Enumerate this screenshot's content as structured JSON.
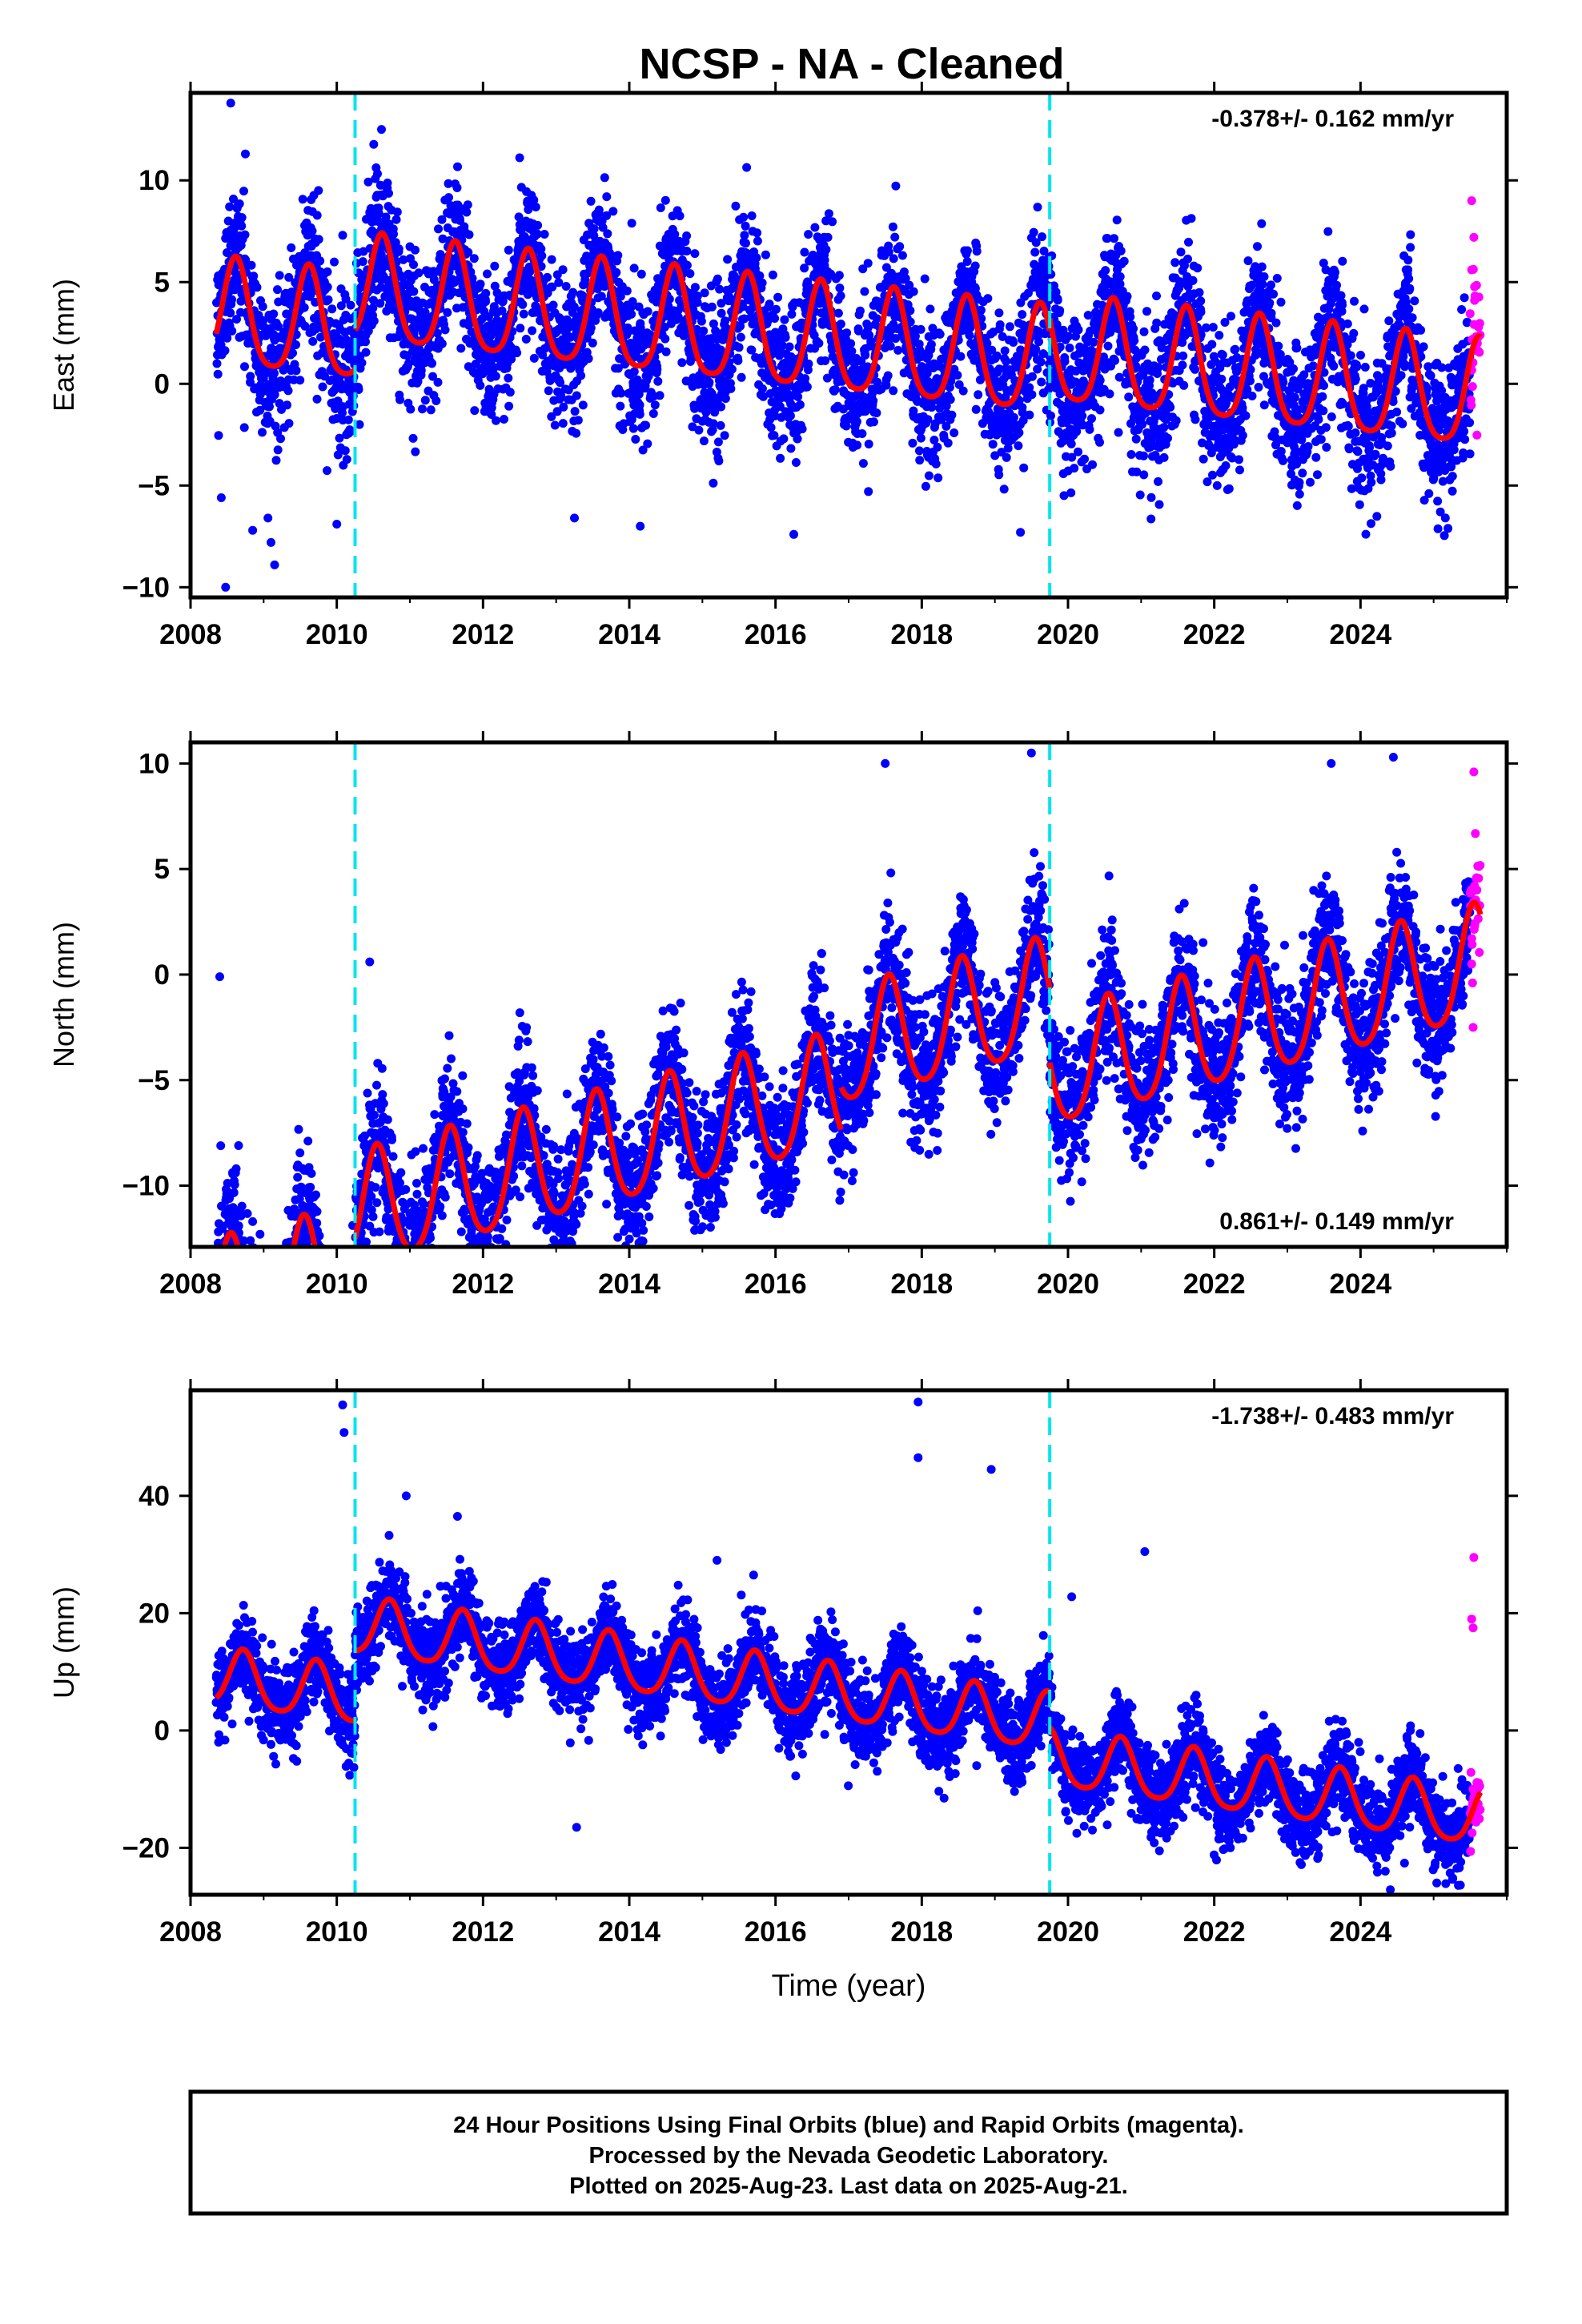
{
  "title": "NCSP  - NA - Cleaned",
  "footer": {
    "lines": [
      "24 Hour Positions Using Final Orbits (blue) and Rapid Orbits (magenta).",
      "Processed by the Nevada Geodetic Laboratory.",
      "Plotted on 2025-Aug-23. Last data on 2025-Aug-21."
    ]
  },
  "colors": {
    "final_orbits": "#0000ff",
    "rapid_orbits": "#ff00ff",
    "model": "#ff0000",
    "steps": "#00e5ee",
    "frame": "#000000"
  },
  "chart_data": [
    {
      "type": "scatter",
      "name": "east",
      "ylabel": "East (mm)",
      "xlabel": "",
      "xlim": [
        2008.0,
        2026.0
      ],
      "ylim": [
        -10.5,
        14.3
      ],
      "xticks": [
        2008,
        2010,
        2012,
        2014,
        2016,
        2018,
        2020,
        2022,
        2024
      ],
      "yticks": [
        -10,
        -5,
        0,
        5,
        10
      ],
      "rate_text": "-0.378+/- 0.162 mm/yr",
      "rate_position": "top-right",
      "step_lines_year": [
        2010.25,
        2019.75
      ],
      "data_span": [
        2008.35,
        2025.64
      ],
      "rapid_span": [
        2025.5,
        2025.64
      ],
      "model": {
        "offset": 3.4,
        "trend_mm_per_yr": -0.378,
        "annual_amp": 2.6,
        "annual_peak_frac": 0.62,
        "semiannual_amp": 0.5,
        "noise_sd": 1.8,
        "step_jumps": [
          [
            2010.25,
            1.9
          ],
          [
            2019.75,
            0.6
          ]
        ]
      },
      "outliers": [
        [
          2008.55,
          13.8
        ],
        [
          2008.75,
          11.3
        ],
        [
          2008.42,
          -5.6
        ],
        [
          2008.48,
          -10.0
        ],
        [
          2008.85,
          -7.2
        ],
        [
          2009.1,
          -7.8
        ],
        [
          2009.15,
          -8.9
        ],
        [
          2009.75,
          9.5
        ],
        [
          2010.0,
          -6.9
        ],
        [
          2010.08,
          7.3
        ],
        [
          2013.25,
          -6.6
        ],
        [
          2014.15,
          -7.0
        ],
        [
          2016.25,
          -7.4
        ],
        [
          2019.35,
          -7.3
        ],
        [
          2025.52,
          9.0
        ],
        [
          2025.55,
          7.2
        ],
        [
          2025.52,
          5.6
        ],
        [
          2025.56,
          4.1
        ]
      ]
    },
    {
      "type": "scatter",
      "name": "north",
      "ylabel": "North (mm)",
      "xlabel": "",
      "xlim": [
        2008.0,
        2026.0
      ],
      "ylim": [
        -12.9,
        11.0
      ],
      "xticks": [
        2008,
        2010,
        2012,
        2014,
        2016,
        2018,
        2020,
        2022,
        2024
      ],
      "yticks": [
        -10,
        -5,
        0,
        5,
        10
      ],
      "rate_text": "0.861+/- 0.149 mm/yr",
      "rate_position": "bottom-right",
      "step_lines_year": [
        2010.25,
        2019.75
      ],
      "data_span": [
        2008.35,
        2025.64
      ],
      "rapid_span": [
        2025.5,
        2025.64
      ],
      "model": {
        "offset": -15.8,
        "trend_mm_per_yr": 0.861,
        "annual_amp": 2.7,
        "annual_peak_frac": 0.55,
        "semiannual_amp": 0.4,
        "noise_sd": 1.6,
        "step_jumps": [
          [
            2010.25,
            2.5
          ],
          [
            2016.9,
            2.0
          ],
          [
            2019.75,
            -3.5
          ]
        ]
      },
      "outliers": [
        [
          2008.85,
          -11.7
        ],
        [
          2008.95,
          -12.3
        ],
        [
          2008.4,
          -0.1
        ],
        [
          2010.45,
          0.6
        ],
        [
          2017.5,
          10.0
        ],
        [
          2019.5,
          10.5
        ],
        [
          2023.6,
          10.0
        ],
        [
          2024.45,
          10.3
        ],
        [
          2025.55,
          9.6
        ],
        [
          2025.52,
          0.5
        ],
        [
          2025.54,
          -2.5
        ],
        [
          2025.56,
          4.2
        ]
      ]
    },
    {
      "type": "scatter",
      "name": "up",
      "ylabel": "Up (mm)",
      "xlabel": "Time (year)",
      "xlim": [
        2008.0,
        2026.0
      ],
      "ylim": [
        -28.0,
        58.0
      ],
      "xticks": [
        2008,
        2010,
        2012,
        2014,
        2016,
        2018,
        2020,
        2022,
        2024
      ],
      "yticks": [
        -20,
        0,
        20,
        40
      ],
      "rate_text": "-1.738+/- 0.483 mm/yr",
      "rate_position": "top-right",
      "step_lines_year": [
        2010.25,
        2019.75
      ],
      "data_span": [
        2008.35,
        2025.64
      ],
      "rapid_span": [
        2025.5,
        2025.64
      ],
      "model": {
        "offset": 9.5,
        "trend_mm_per_yr": -1.738,
        "annual_amp": 4.8,
        "annual_peak_frac": 0.72,
        "semiannual_amp": 0.8,
        "noise_sd": 3.6,
        "step_jumps": [
          [
            2010.25,
            12.0
          ],
          [
            2019.75,
            -6.0
          ]
        ]
      },
      "outliers": [
        [
          2010.08,
          55.5
        ],
        [
          2010.1,
          50.8
        ],
        [
          2010.95,
          40.0
        ],
        [
          2011.65,
          36.5
        ],
        [
          2013.28,
          -16.5
        ],
        [
          2015.2,
          29.0
        ],
        [
          2015.7,
          26.5
        ],
        [
          2017.95,
          56.0
        ],
        [
          2017.95,
          46.5
        ],
        [
          2018.95,
          44.5
        ],
        [
          2021.05,
          30.5
        ],
        [
          2020.05,
          22.8
        ],
        [
          2025.55,
          29.5
        ],
        [
          2025.52,
          19.0
        ],
        [
          2025.54,
          17.5
        ],
        [
          2025.56,
          -10.5
        ]
      ]
    }
  ]
}
